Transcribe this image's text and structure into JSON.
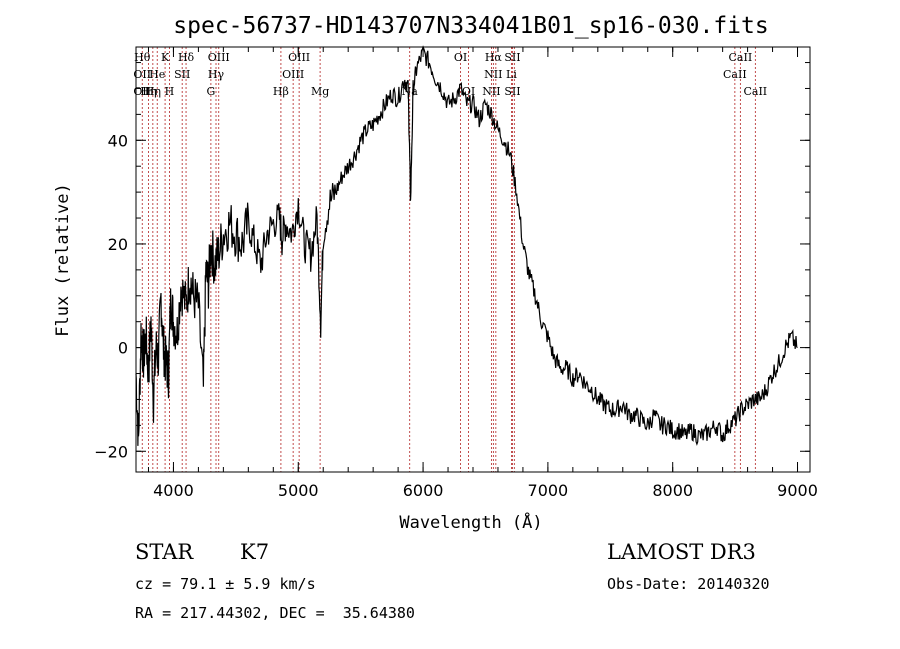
{
  "chart_data": {
    "type": "line",
    "title": "spec-56737-HD143707N334041B01_sp16-030.fits",
    "xlabel": "Wavelength (Å)",
    "ylabel": "Flux (relative)",
    "xlim": [
      3700,
      9100
    ],
    "ylim": [
      -24,
      58
    ],
    "xticks": [
      4000,
      5000,
      6000,
      7000,
      8000,
      9000
    ],
    "yticks": [
      -20,
      0,
      20,
      40
    ],
    "grid": false,
    "line_color": "#000000",
    "marker_color": "#b22222",
    "series": [
      {
        "x": [
          3700,
          3720,
          3740,
          3760,
          3780,
          3800,
          3820,
          3840,
          3860,
          3880,
          3900,
          3920,
          3940,
          3960,
          3980,
          4000,
          4030,
          4060,
          4100,
          4130,
          4160,
          4200,
          4240,
          4260,
          4280,
          4300,
          4330,
          4360,
          4400,
          4450,
          4500,
          4550,
          4600,
          4650,
          4700,
          4750,
          4800,
          4850,
          4870,
          4900,
          4950,
          5000,
          5050,
          5100,
          5150,
          5180,
          5200,
          5250,
          5300,
          5350,
          5400,
          5450,
          5500,
          5550,
          5600,
          5650,
          5700,
          5750,
          5800,
          5850,
          5880,
          5890,
          5900,
          5920,
          5950,
          6000,
          6050,
          6100,
          6150,
          6200,
          6250,
          6300,
          6350,
          6400,
          6450,
          6500,
          6550,
          6600,
          6650,
          6700,
          6750,
          6800,
          6850,
          6900,
          6950,
          7000,
          7050,
          7100,
          7150,
          7200,
          7250,
          7300,
          7350,
          7400,
          7450,
          7500,
          7550,
          7600,
          7650,
          7700,
          7750,
          7800,
          7850,
          7900,
          7950,
          8000,
          8050,
          8100,
          8150,
          8200,
          8250,
          8300,
          8350,
          8400,
          8450,
          8500,
          8550,
          8600,
          8650,
          8700,
          8750,
          8800,
          8850,
          8900,
          8950,
          9000
        ],
        "y": [
          -5,
          -18,
          3,
          -2,
          2,
          -5,
          5,
          -10,
          0,
          -2,
          10,
          0,
          -3,
          -5,
          10,
          5,
          3,
          12,
          8,
          14,
          10,
          8,
          -8,
          15,
          12,
          20,
          16,
          18,
          22,
          24,
          22,
          20,
          24,
          20,
          16,
          22,
          24,
          25,
          21,
          24,
          22,
          28,
          20,
          18,
          25,
          5,
          22,
          28,
          30,
          33,
          35,
          37,
          40,
          42,
          43,
          45,
          47,
          49,
          48,
          52,
          50,
          40,
          28,
          50,
          54,
          57,
          55,
          52,
          50,
          47,
          48,
          50,
          47,
          47,
          44,
          47,
          45,
          42,
          40,
          37,
          30,
          20,
          14,
          10,
          5,
          2,
          -2,
          -4,
          -4,
          -6,
          -5,
          -7,
          -8,
          -10,
          -11,
          -12,
          -12,
          -11,
          -13,
          -13,
          -14,
          -15,
          -13,
          -15,
          -15,
          -16,
          -16,
          -17,
          -16,
          -17,
          -17,
          -16,
          -15,
          -17,
          -15,
          -14,
          -12,
          -11,
          -10,
          -10,
          -8,
          -5,
          -3,
          0,
          2,
          0
        ]
      }
    ],
    "line_marks": [
      {
        "x": 3750,
        "labels": [
          "Hθ",
          "OII",
          "OII"
        ]
      },
      {
        "x": 3800,
        "labels": [
          "",
          "",
          "Hη"
        ]
      },
      {
        "x": 3835,
        "labels": [
          "",
          "",
          "Hη"
        ]
      },
      {
        "x": 3870,
        "labels": [
          "",
          "He",
          ""
        ]
      },
      {
        "x": 3933,
        "labels": [
          "K",
          "",
          ""
        ]
      },
      {
        "x": 3968,
        "labels": [
          "",
          "",
          "H"
        ]
      },
      {
        "x": 4070,
        "labels": [
          "",
          "SII",
          ""
        ]
      },
      {
        "x": 4101,
        "labels": [
          "Hδ",
          "",
          ""
        ]
      },
      {
        "x": 4300,
        "labels": [
          "",
          "",
          "G"
        ]
      },
      {
        "x": 4341,
        "labels": [
          "",
          "Hγ",
          ""
        ]
      },
      {
        "x": 4363,
        "labels": [
          "OIII",
          "",
          ""
        ]
      },
      {
        "x": 4861,
        "labels": [
          "",
          "",
          "Hβ"
        ]
      },
      {
        "x": 4959,
        "labels": [
          "",
          "OIII",
          ""
        ]
      },
      {
        "x": 5007,
        "labels": [
          "OIII",
          "",
          ""
        ]
      },
      {
        "x": 5175,
        "labels": [
          "",
          "",
          "Mg"
        ]
      },
      {
        "x": 5893,
        "labels": [
          "",
          "",
          "Na"
        ]
      },
      {
        "x": 6300,
        "labels": [
          "OI",
          "",
          ""
        ]
      },
      {
        "x": 6364,
        "labels": [
          "",
          "",
          "OI"
        ]
      },
      {
        "x": 6548,
        "labels": [
          "",
          "",
          "NII"
        ]
      },
      {
        "x": 6563,
        "labels": [
          "Hα",
          "NII",
          ""
        ]
      },
      {
        "x": 6583,
        "labels": [
          "",
          "",
          ""
        ]
      },
      {
        "x": 6708,
        "labels": [
          "",
          "Li",
          ""
        ]
      },
      {
        "x": 6716,
        "labels": [
          "SII",
          "",
          "SII"
        ]
      },
      {
        "x": 6731,
        "labels": [
          "",
          "",
          ""
        ]
      },
      {
        "x": 8498,
        "labels": [
          "",
          "CaII",
          ""
        ]
      },
      {
        "x": 8542,
        "labels": [
          "CaII",
          "",
          ""
        ]
      },
      {
        "x": 8662,
        "labels": [
          "",
          "",
          "CaII"
        ]
      }
    ]
  },
  "info": {
    "class_label": "STAR",
    "subclass": "K7",
    "cz_line": "cz = 79.1 ± 5.9 km/s",
    "coord_line": "RA = 217.44302, DEC =  35.64380",
    "survey": "LAMOST DR3",
    "obs_date": "Obs-Date: 20140320"
  }
}
